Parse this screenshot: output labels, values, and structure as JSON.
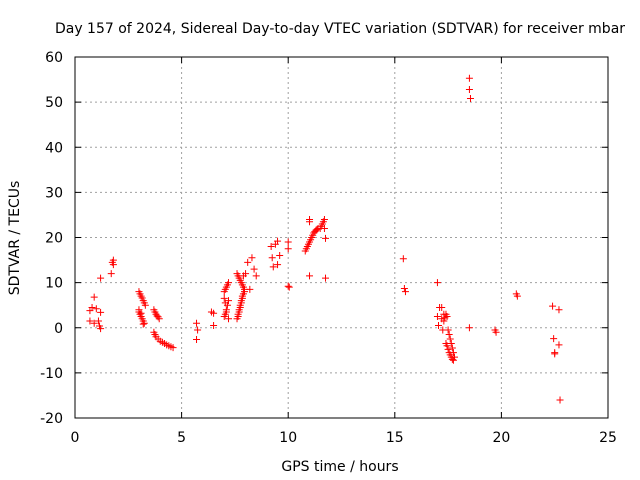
{
  "chart_data": {
    "type": "scatter",
    "title": "Day 157 of 2024, Sidereal Day-to-day VTEC variation (SDTVAR) for receiver mbar",
    "xlabel": "GPS time / hours",
    "ylabel": "SDTVAR / TECUs",
    "xlim": [
      0,
      25
    ],
    "ylim": [
      -20,
      60
    ],
    "xticks": [
      0,
      5,
      10,
      15,
      20,
      25
    ],
    "yticks": [
      -20,
      -10,
      0,
      10,
      20,
      30,
      40,
      50,
      60
    ],
    "grid": true,
    "marker": "+",
    "marker_color": "#ff0000",
    "series": [
      {
        "name": "SDTVAR",
        "x": [
          0.7,
          0.7,
          0.8,
          0.9,
          0.9,
          1.0,
          1.1,
          1.15,
          1.2,
          1.2,
          1.2,
          1.7,
          1.75,
          1.8,
          1.8,
          3.0,
          3.05,
          3.1,
          3.15,
          3.2,
          3.25,
          3.3,
          3.0,
          3.05,
          3.1,
          3.15,
          3.2,
          3.25,
          3.0,
          3.1,
          3.2,
          3.7,
          3.75,
          3.8,
          3.85,
          3.9,
          3.95,
          3.7,
          3.75,
          3.8,
          3.9,
          4.0,
          4.1,
          4.2,
          4.3,
          4.4,
          4.5,
          4.6,
          5.7,
          5.7,
          5.75,
          6.4,
          6.5,
          6.5,
          7.0,
          7.05,
          7.1,
          7.15,
          7.2,
          7.0,
          7.05,
          7.1,
          7.15,
          7.2,
          7.0,
          7.05,
          7.1,
          7.2,
          7.6,
          7.65,
          7.7,
          7.75,
          7.8,
          7.85,
          7.9,
          7.95,
          7.6,
          7.65,
          7.7,
          7.75,
          7.8,
          7.85,
          7.9,
          7.95,
          7.65,
          7.7,
          7.75,
          7.8,
          7.85,
          7.9,
          8.0,
          8.1,
          8.2,
          8.3,
          8.4,
          8.5,
          9.2,
          9.25,
          9.3,
          9.4,
          9.5,
          9.5,
          9.6,
          10.0,
          10.0,
          10.0,
          10.05,
          10.8,
          10.85,
          10.9,
          10.95,
          11.0,
          11.05,
          11.1,
          11.15,
          11.2,
          11.25,
          11.3,
          11.35,
          11.4,
          11.0,
          11.0,
          11.0,
          11.5,
          11.55,
          11.6,
          11.65,
          11.7,
          11.7,
          11.75,
          11.75,
          15.4,
          15.45,
          15.5,
          17.0,
          17.0,
          17.05,
          17.1,
          17.2,
          17.2,
          17.25,
          17.3,
          17.3,
          17.35,
          17.4,
          17.45,
          17.5,
          17.55,
          17.6,
          17.65,
          17.7,
          17.75,
          17.8,
          17.4,
          17.45,
          17.5,
          17.55,
          17.6,
          17.65,
          17.7,
          17.75,
          18.5,
          18.5,
          18.55,
          18.5,
          19.7,
          19.75,
          20.7,
          20.75,
          22.4,
          22.45,
          22.5,
          22.5,
          22.7,
          22.7,
          22.75
        ],
        "y": [
          1.5,
          3.8,
          4.5,
          1.0,
          6.8,
          4.2,
          1.5,
          0.4,
          -0.2,
          3.4,
          11.0,
          12.0,
          14.5,
          14.0,
          15.0,
          8.0,
          7.5,
          7.0,
          6.6,
          6.0,
          5.5,
          5.0,
          3.5,
          3.0,
          2.5,
          2.0,
          1.5,
          1.0,
          4.0,
          3.2,
          0.8,
          4.0,
          3.5,
          3.0,
          2.6,
          2.4,
          2.0,
          -1.0,
          -1.5,
          -2.0,
          -2.5,
          -3.0,
          -3.2,
          -3.5,
          -3.8,
          -4.0,
          -4.2,
          -4.4,
          1.0,
          -2.6,
          -0.5,
          3.5,
          0.5,
          3.2,
          8.0,
          8.5,
          9.0,
          9.5,
          10.0,
          2.5,
          3.0,
          4.0,
          5.0,
          6.0,
          6.5,
          5.5,
          3.5,
          2.0,
          12.0,
          11.5,
          11.0,
          10.5,
          10.0,
          9.5,
          9.0,
          8.5,
          2.0,
          3.0,
          4.0,
          5.0,
          6.0,
          7.0,
          7.5,
          8.0,
          2.5,
          3.5,
          4.5,
          5.5,
          6.5,
          11.5,
          12.0,
          14.5,
          8.5,
          15.5,
          13.0,
          11.5,
          18.0,
          15.5,
          13.5,
          18.5,
          19.2,
          14.0,
          16.0,
          17.5,
          19.0,
          9.2,
          9.0,
          17.0,
          17.5,
          18.0,
          18.5,
          19.0,
          19.5,
          20.0,
          20.5,
          21.0,
          21.3,
          21.6,
          21.8,
          22.0,
          24.0,
          23.5,
          11.5,
          22.0,
          22.5,
          23.0,
          23.5,
          24.0,
          22.0,
          19.8,
          11.0,
          15.3,
          8.7,
          8.0,
          10.0,
          2.5,
          0.5,
          4.5,
          4.5,
          2.0,
          -0.5,
          1.5,
          3.0,
          2.2,
          3.0,
          2.5,
          -0.5,
          -1.5,
          -2.5,
          -3.5,
          -4.5,
          -5.5,
          -6.5,
          -3.5,
          -4.0,
          -4.8,
          -5.5,
          -6.0,
          -6.5,
          -7.0,
          -7.2,
          55.3,
          52.8,
          50.8,
          0.0,
          -0.5,
          -1.0,
          7.5,
          7.0,
          4.8,
          -2.4,
          -5.5,
          -5.8,
          4.0,
          -3.8,
          -16.0
        ]
      }
    ]
  }
}
